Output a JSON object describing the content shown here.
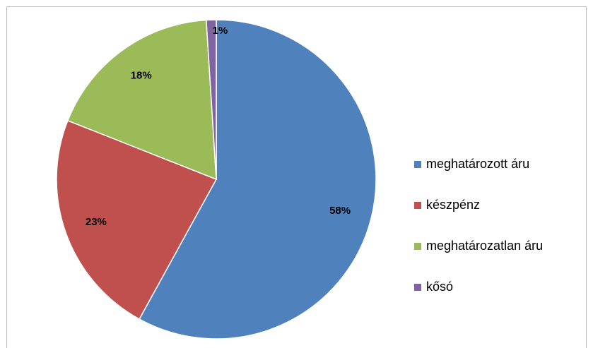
{
  "chart_data": {
    "type": "pie",
    "categories": [
      "meghatározott áru",
      "készpénz",
      "meghatározatlan áru",
      "kősó"
    ],
    "values": [
      58,
      23,
      18,
      1
    ],
    "value_labels": [
      "58%",
      "23%",
      "18%",
      "1%"
    ],
    "colors": [
      "#4f81bd",
      "#c0504d",
      "#9bbb59",
      "#8064a2"
    ],
    "legend": "right"
  }
}
